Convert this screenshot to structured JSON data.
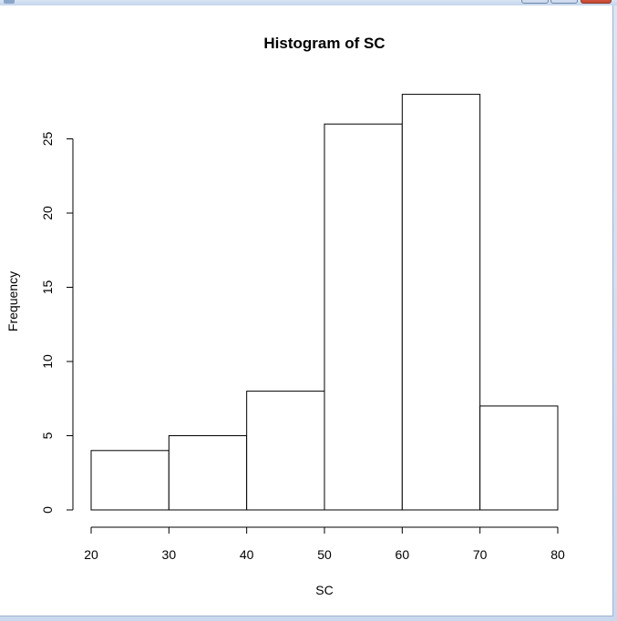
{
  "window": {
    "title": ""
  },
  "chart_data": {
    "type": "bar",
    "title": "Histogram of SC",
    "xlabel": "SC",
    "ylabel": "Frequency",
    "bin_edges": [
      20,
      30,
      40,
      50,
      60,
      70,
      80
    ],
    "categories": [
      "20-30",
      "30-40",
      "40-50",
      "50-60",
      "60-70",
      "70-80"
    ],
    "values": [
      4,
      5,
      8,
      26,
      28,
      7
    ],
    "x_ticks": [
      20,
      30,
      40,
      50,
      60,
      70,
      80
    ],
    "y_ticks": [
      0,
      5,
      10,
      15,
      20,
      25
    ],
    "xlim": [
      20,
      80
    ],
    "ylim": [
      0,
      28
    ],
    "grid": false,
    "bar_fill": "#ffffff",
    "bar_stroke": "#000000"
  }
}
